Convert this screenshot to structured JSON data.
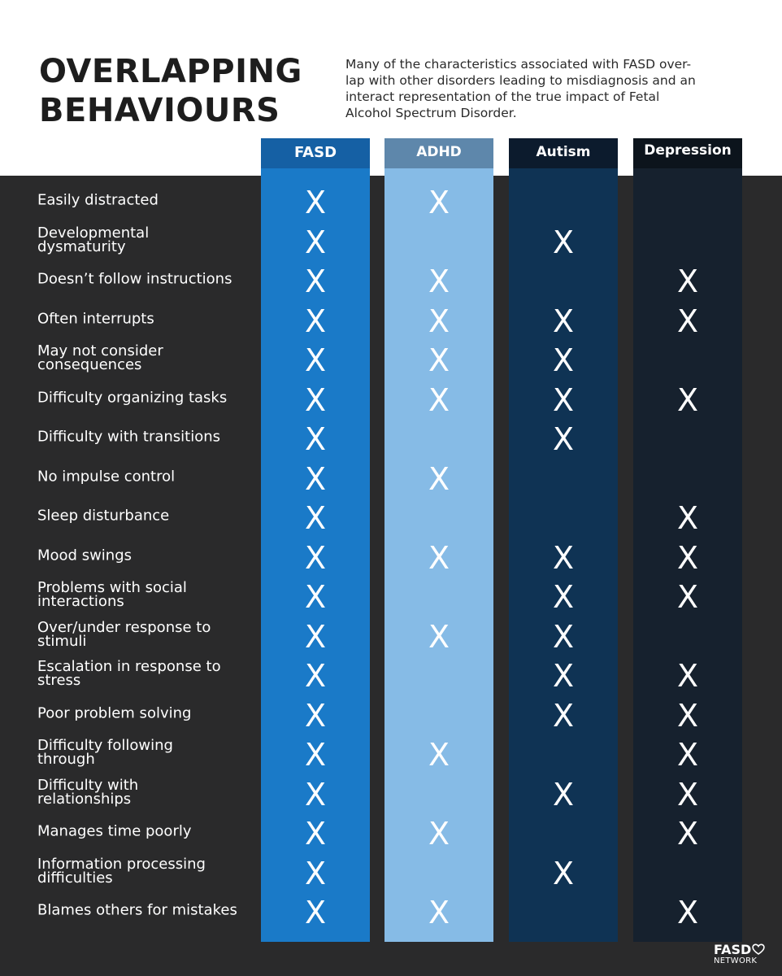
{
  "header": {
    "title": "OVERLAPPING\nBEHAVIOURS",
    "intro": "Many of the characteristics associated with FASD over-lap with other disorders leading to misdiagnosis and an interact representation of the true impact of Fetal Alcohol Spectrum Disorder."
  },
  "columns": [
    "FASD",
    "ADHD",
    "Autism",
    "Depression"
  ],
  "mark_symbol": "X",
  "rows": [
    {
      "label": "Easily distracted",
      "marks": [
        true,
        true,
        false,
        false
      ]
    },
    {
      "label": "Developmental\ndysmaturity",
      "marks": [
        true,
        false,
        true,
        false
      ]
    },
    {
      "label": "Doesn’t follow instructions",
      "marks": [
        true,
        true,
        false,
        true
      ]
    },
    {
      "label": "Often interrupts",
      "marks": [
        true,
        true,
        true,
        true
      ]
    },
    {
      "label": "May not consider\nconsequences",
      "marks": [
        true,
        true,
        true,
        false
      ]
    },
    {
      "label": "Difficulty organizing tasks",
      "marks": [
        true,
        true,
        true,
        true
      ]
    },
    {
      "label": "Difficulty with transitions",
      "marks": [
        true,
        false,
        true,
        false
      ]
    },
    {
      "label": "No impulse control",
      "marks": [
        true,
        true,
        false,
        false
      ]
    },
    {
      "label": "Sleep disturbance",
      "marks": [
        true,
        false,
        false,
        true
      ]
    },
    {
      "label": "Mood swings",
      "marks": [
        true,
        true,
        true,
        true
      ]
    },
    {
      "label": "Problems with social\ninteractions",
      "marks": [
        true,
        false,
        true,
        true
      ]
    },
    {
      "label": "Over/under response to\nstimuli",
      "marks": [
        true,
        true,
        true,
        false
      ]
    },
    {
      "label": "Escalation in response to\nstress",
      "marks": [
        true,
        false,
        true,
        true
      ]
    },
    {
      "label": "Poor problem solving",
      "marks": [
        true,
        false,
        true,
        true
      ]
    },
    {
      "label": "Difficulty following\nthrough",
      "marks": [
        true,
        true,
        false,
        true
      ]
    },
    {
      "label": "Difficulty with\nrelationships",
      "marks": [
        true,
        false,
        true,
        true
      ]
    },
    {
      "label": "Manages time poorly",
      "marks": [
        true,
        true,
        false,
        true
      ]
    },
    {
      "label": "Information processing\ndifficulties",
      "marks": [
        true,
        false,
        true,
        false
      ]
    },
    {
      "label": "Blames others for mistakes",
      "marks": [
        true,
        true,
        false,
        true
      ]
    }
  ],
  "logo": {
    "name": "FASD",
    "sub": "NETWORK"
  },
  "colors": {
    "fasd": "#1a7ac8",
    "adhd": "#86bbe6",
    "autism": "#0f3354",
    "depression": "#16212e",
    "background": "#2a2a2b"
  }
}
